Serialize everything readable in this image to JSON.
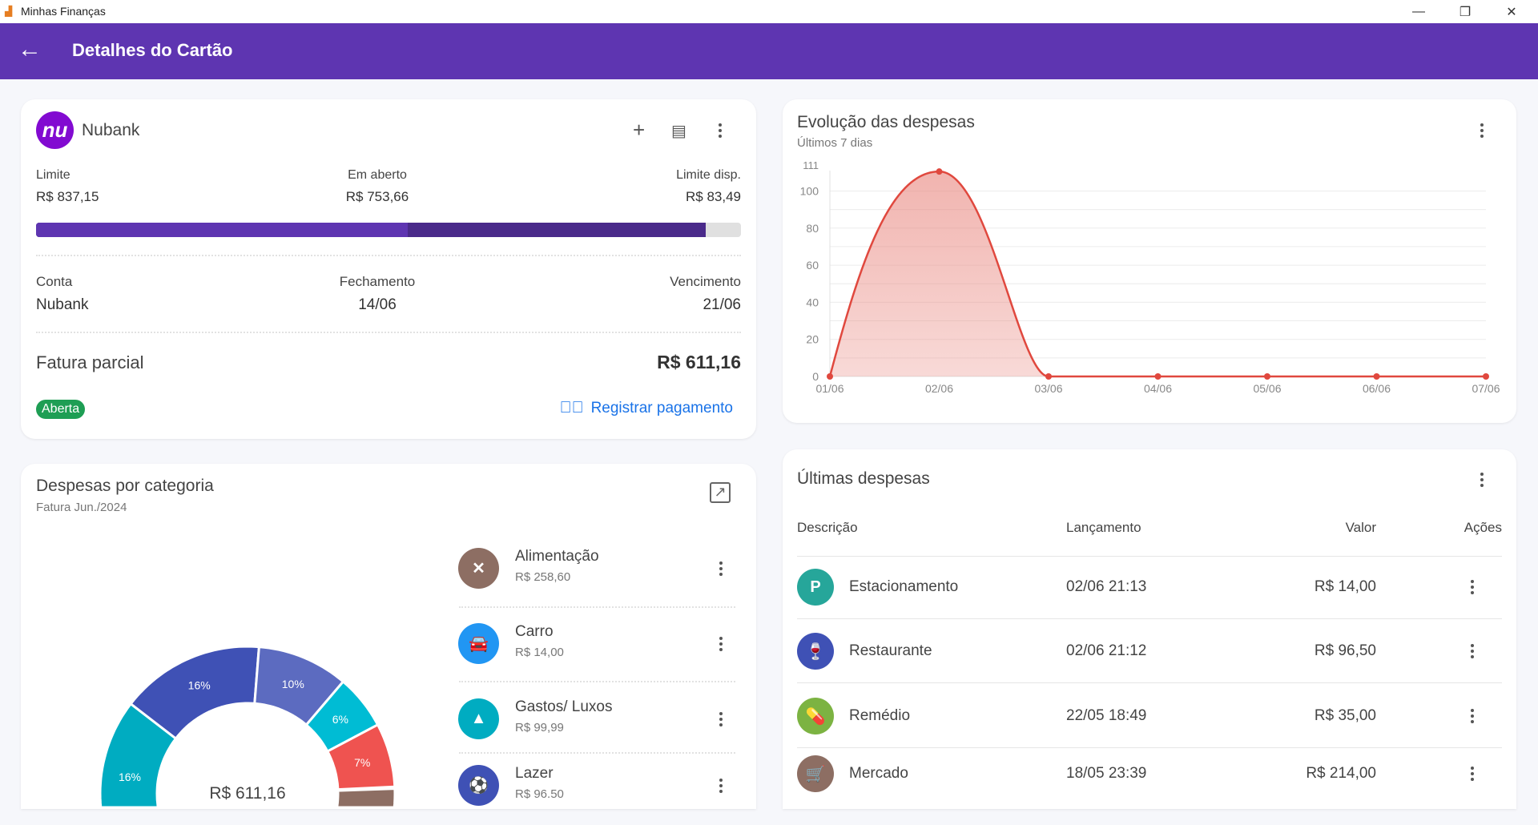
{
  "window": {
    "title": "Minhas Finanças",
    "minimize": "—",
    "maximize": "❐",
    "close": "✕"
  },
  "appbar": {
    "title": "Detalhes do Cartão",
    "back_icon": "arrow-left-icon"
  },
  "card": {
    "name": "Nubank",
    "logo_text": "nu",
    "logo_color": "#820ad1",
    "limite_label": "Limite",
    "limite": "R$ 837,15",
    "aberto_label": "Em aberto",
    "aberto": "R$ 753,66",
    "disp_label": "Limite disp.",
    "disp": "R$ 83,49",
    "bar_segments": [
      0.527,
      0.95
    ],
    "conta_label": "Conta",
    "conta": "Nubank",
    "fechamento_label": "Fechamento",
    "fechamento": "14/06",
    "vencimento_label": "Vencimento",
    "vencimento": "21/06",
    "fatura_label": "Fatura parcial",
    "fatura": "R$ 611,16",
    "status": "Aberta",
    "status_color": "#1e9e54",
    "pay_label": "Registrar pagamento"
  },
  "evolucao": {
    "title": "Evolução das despesas",
    "subtitle": "Últimos 7 dias"
  },
  "categorias": {
    "title": "Despesas por categoria",
    "subtitle": "Fatura Jun./2024",
    "total": "R$ 611,16",
    "items": [
      {
        "name": "Alimentação",
        "amount": "R$ 258,60",
        "color": "#8d6e63",
        "icon": "utensils-icon",
        "glyph": "✕"
      },
      {
        "name": "Carro",
        "amount": "R$ 14,00",
        "color": "#2196f3",
        "icon": "car-icon",
        "glyph": "🚘"
      },
      {
        "name": "Gastos/ Luxos",
        "amount": "R$ 99,99",
        "color": "#00acc1",
        "icon": "shapes-icon",
        "glyph": "▲"
      },
      {
        "name": "Lazer",
        "amount": "R$ 96.50",
        "color": "#3f51b5",
        "icon": "soccer-ball-icon",
        "glyph": "⚽"
      }
    ]
  },
  "despesas": {
    "title": "Últimas despesas",
    "headers": {
      "desc": "Descrição",
      "date": "Lançamento",
      "value": "Valor",
      "actions": "Ações"
    },
    "rows": [
      {
        "name": "Estacionamento",
        "date": "02/06 21:13",
        "value": "R$ 14,00",
        "color": "#26a69a",
        "icon": "parking-icon",
        "glyph": "P"
      },
      {
        "name": "Restaurante",
        "date": "02/06 21:12",
        "value": "R$ 96,50",
        "color": "#3f51b5",
        "icon": "wine-glass-icon",
        "glyph": "🍷"
      },
      {
        "name": "Remédio",
        "date": "22/05 18:49",
        "value": "R$ 35,00",
        "color": "#7cb342",
        "icon": "pill-icon",
        "glyph": "💊"
      },
      {
        "name": "Mercado",
        "date": "18/05 23:39",
        "value": "R$ 214,00",
        "color": "#8d6e63",
        "icon": "cart-icon",
        "glyph": "🛒"
      }
    ]
  },
  "chart_data": [
    {
      "type": "area",
      "x": [
        "01/06",
        "02/06",
        "03/06",
        "04/06",
        "05/06",
        "06/06",
        "07/06"
      ],
      "values": [
        0,
        110.5,
        0,
        0,
        0,
        0,
        0
      ],
      "ylim": [
        0,
        111
      ],
      "yticks": [
        0,
        20,
        40,
        60,
        80,
        100,
        111
      ],
      "grid": true,
      "color": "#e0483e"
    },
    {
      "type": "pie",
      "donut": true,
      "slices": [
        {
          "category": "Alimentação",
          "percent": 42.3,
          "color": "#8d6e63",
          "label": ""
        },
        {
          "category": "Carro",
          "percent": 2.3,
          "color": "#2196f3",
          "label": ""
        },
        {
          "category": "Gastos/ Luxos",
          "percent": 16.4,
          "color": "#00acc1",
          "label": "16%"
        },
        {
          "category": "Lazer",
          "percent": 15.8,
          "color": "#3f51b5",
          "label": "16%"
        },
        {
          "category": "",
          "percent": 10,
          "color": "#5c6bc0",
          "label": "10%"
        },
        {
          "category": "",
          "percent": 6,
          "color": "#00bcd4",
          "label": "6%"
        },
        {
          "category": "",
          "percent": 7,
          "color": "#ef5350",
          "label": "7%"
        }
      ]
    }
  ]
}
